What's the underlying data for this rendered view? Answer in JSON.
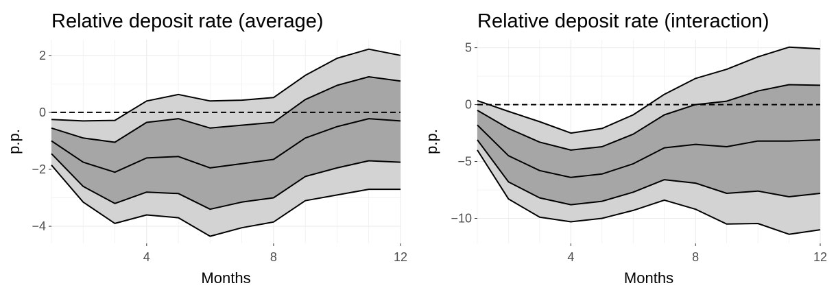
{
  "chart_data": [
    {
      "type": "area",
      "title": "Relative deposit rate (average)",
      "xlabel": "Months",
      "ylabel": "p.p.",
      "xlim": [
        1,
        12
      ],
      "ylim": [
        -4.6,
        2.55
      ],
      "xticks": [
        4,
        8,
        12
      ],
      "yticks": [
        -4,
        -2,
        0,
        2
      ],
      "ytick_labels": [
        "−4",
        "−2",
        "0",
        "2"
      ],
      "grid": true,
      "reference_line": 0,
      "x": [
        1,
        2,
        3,
        4,
        5,
        6,
        7,
        8,
        9,
        10,
        11,
        12
      ],
      "bands": [
        {
          "level": "outer",
          "color": "#d3d3d3",
          "lower": [
            -1.85,
            -3.15,
            -3.9,
            -3.6,
            -3.7,
            -4.35,
            -4.05,
            -3.85,
            -3.1,
            -2.9,
            -2.7,
            -2.7
          ],
          "upper": [
            -0.25,
            -0.3,
            -0.28,
            0.4,
            0.63,
            0.4,
            0.43,
            0.52,
            1.3,
            1.9,
            2.22,
            2.0
          ]
        },
        {
          "level": "inner",
          "color": "#a6a6a6",
          "lower": [
            -1.45,
            -2.6,
            -3.2,
            -2.8,
            -2.85,
            -3.4,
            -3.15,
            -3.0,
            -2.25,
            -1.95,
            -1.7,
            -1.75
          ],
          "upper": [
            -0.55,
            -0.9,
            -1.05,
            -0.35,
            -0.22,
            -0.55,
            -0.45,
            -0.35,
            0.45,
            0.95,
            1.25,
            1.1
          ]
        }
      ],
      "series": [
        {
          "values": [
            -1.0,
            -1.75,
            -2.1,
            -1.6,
            -1.55,
            -1.95,
            -1.8,
            -1.65,
            -0.9,
            -0.5,
            -0.22,
            -0.3
          ]
        }
      ]
    },
    {
      "type": "area",
      "title": "Relative deposit rate (interaction)",
      "xlabel": "Months",
      "ylabel": "p.p.",
      "xlim": [
        1,
        12
      ],
      "ylim": [
        -12.2,
        5.7
      ],
      "xticks": [
        4,
        8,
        12
      ],
      "yticks": [
        -10,
        -5,
        0,
        5
      ],
      "ytick_labels": [
        "−10",
        "−5",
        "0",
        "5"
      ],
      "grid": true,
      "reference_line": 0,
      "x": [
        1,
        2,
        3,
        4,
        5,
        6,
        7,
        8,
        9,
        10,
        11,
        12
      ],
      "bands": [
        {
          "level": "outer",
          "color": "#d3d3d3",
          "lower": [
            -4.0,
            -8.3,
            -9.9,
            -10.3,
            -10.0,
            -9.3,
            -8.4,
            -9.2,
            -10.5,
            -10.45,
            -11.4,
            -11.0
          ],
          "upper": [
            0.35,
            -0.6,
            -1.5,
            -2.5,
            -2.1,
            -0.9,
            0.9,
            2.3,
            3.1,
            4.2,
            5.05,
            4.9
          ]
        },
        {
          "level": "inner",
          "color": "#a6a6a6",
          "lower": [
            -3.1,
            -6.8,
            -8.2,
            -8.8,
            -8.5,
            -7.7,
            -6.6,
            -6.9,
            -7.8,
            -7.6,
            -8.1,
            -7.8
          ]
        },
        {
          "level": "inner_upper",
          "color": "#a6a6a6",
          "upper": [
            -0.5,
            -2.1,
            -3.3,
            -4.0,
            -3.7,
            -2.6,
            -0.9,
            0.0,
            0.3,
            1.2,
            1.75,
            1.7
          ]
        }
      ],
      "series": [
        {
          "values": [
            -1.8,
            -4.5,
            -5.8,
            -6.4,
            -6.1,
            -5.2,
            -3.8,
            -3.5,
            -3.7,
            -3.2,
            -3.2,
            -3.1
          ]
        }
      ]
    }
  ]
}
